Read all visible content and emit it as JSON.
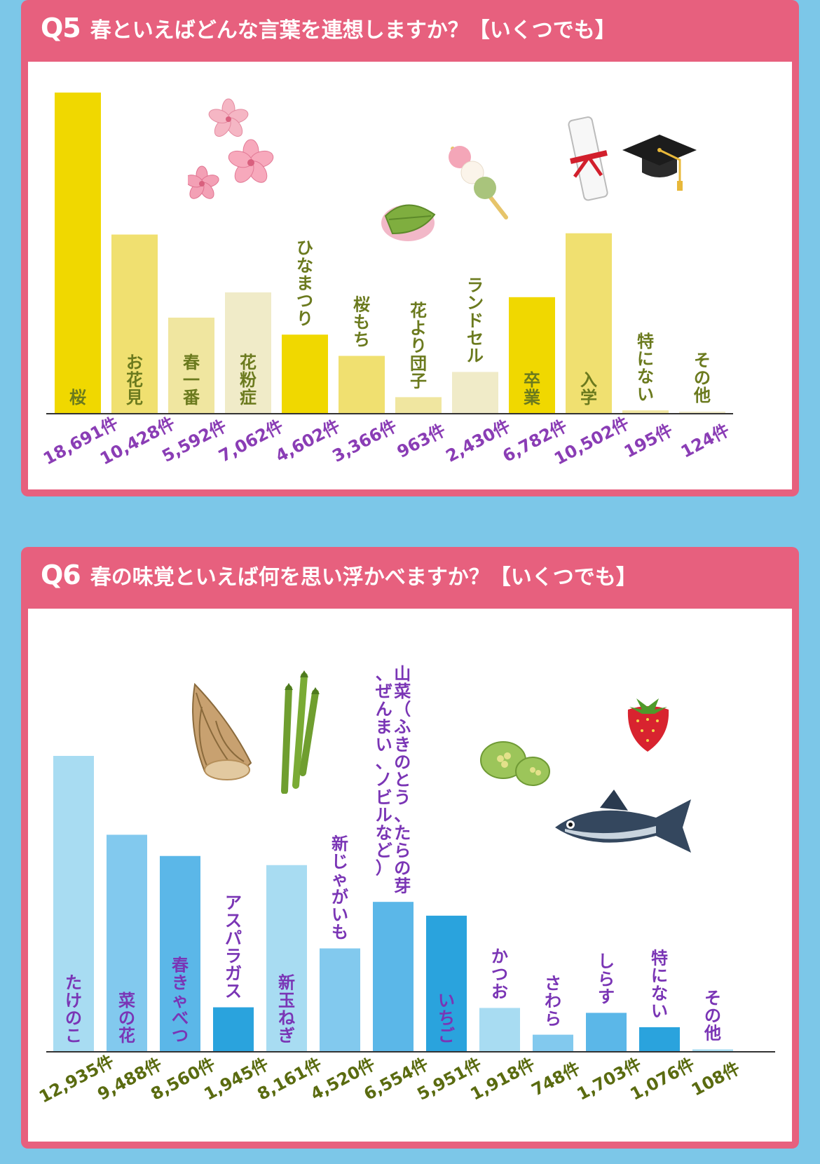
{
  "q5": {
    "number": "Q5",
    "question": "春といえばどんな言葉を連想しますか？【いくつでも】",
    "chart_data": {
      "type": "bar",
      "categories": [
        "桜",
        "お花見",
        "春一番",
        "花粉症",
        "ひなまつり",
        "桜もち",
        "花より団子",
        "ランドセル",
        "卒業",
        "入学",
        "特にない",
        "その他"
      ],
      "values": [
        18691,
        10428,
        5592,
        7062,
        4602,
        3366,
        963,
        2430,
        6782,
        10502,
        195,
        124
      ],
      "value_labels": [
        "18,691件",
        "10,428件",
        "5,592件",
        "7,062件",
        "4,602件",
        "3,366件",
        "963件",
        "2,430件",
        "6,782件",
        "10,502件",
        "195件",
        "124件"
      ],
      "colors": [
        "#f0d800",
        "#f0e070",
        "#f0e6a0",
        "#f0ebc8",
        "#f0d800",
        "#f0e070",
        "#f0e6a0",
        "#f0ebc8",
        "#f0d800",
        "#f0e070",
        "#f0e6a0",
        "#f0ebc8"
      ],
      "label_color": "#6b7a1e",
      "value_color": "#8a3db5",
      "ylim": [
        0,
        18691
      ]
    }
  },
  "q6": {
    "number": "Q6",
    "question": "春の味覚といえば何を思い浮かべますか？【いくつでも】",
    "chart_data": {
      "type": "bar",
      "categories": [
        "たけのこ",
        "菜の花",
        "春きゃべつ",
        "アスパラガス",
        "新玉ねぎ",
        "新じゃがいも",
        "山菜（ふきのとう、たらの芽、ぜんまい、ノビルなど）",
        "いちご",
        "かつお",
        "さわら",
        "しらす",
        "特にない",
        "その他"
      ],
      "values": [
        12935,
        9488,
        8560,
        1945,
        8161,
        4520,
        6554,
        5951,
        1918,
        748,
        1703,
        1076,
        108
      ],
      "value_labels": [
        "12,935件",
        "9,488件",
        "8,560件",
        "1,945件",
        "8,161件",
        "4,520件",
        "6,554件",
        "5,951件",
        "1,918件",
        "748件",
        "1,703件",
        "1,076件",
        "108件"
      ],
      "colors": [
        "#a8dcf2",
        "#82c9ee",
        "#5bb7e8",
        "#2aa3dd",
        "#a8dcf2",
        "#82c9ee",
        "#5bb7e8",
        "#2aa3dd",
        "#a8dcf2",
        "#82c9ee",
        "#5bb7e8",
        "#2aa3dd",
        "#a8dcf2"
      ],
      "label_color": "#7a35b5",
      "value_color": "#5a6b10",
      "ylim": [
        0,
        12935
      ]
    }
  },
  "colors": {
    "page_bg": "#7cc7e8",
    "card_border": "#e7607e",
    "card_bg": "#ffffff"
  },
  "illustrations": {
    "q5": [
      "cherry-blossom-icon",
      "sakura-mochi-icon",
      "dango-icon",
      "diploma-icon",
      "graduation-cap-icon"
    ],
    "q6": [
      "bamboo-shoot-icon",
      "asparagus-icon",
      "strawberry-icon",
      "butterbur-icon",
      "bonito-icon"
    ]
  }
}
